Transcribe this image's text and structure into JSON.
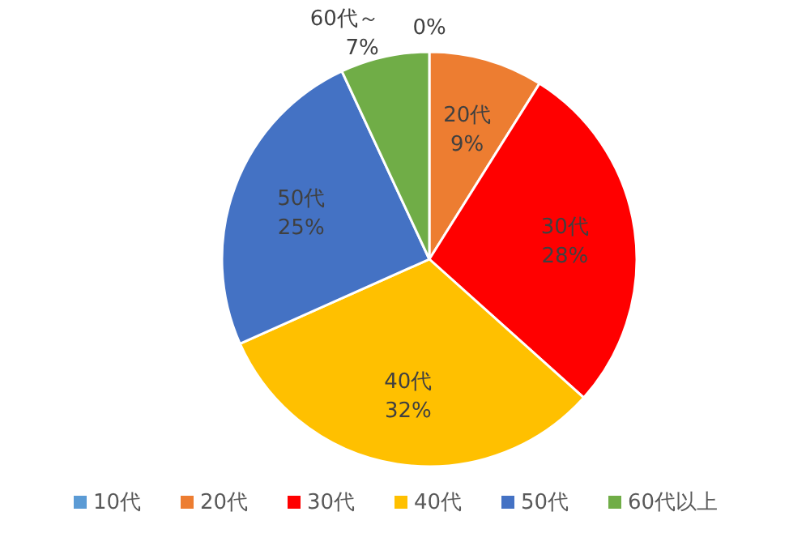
{
  "chart_data": {
    "type": "pie",
    "categories": [
      "10代",
      "20代",
      "30代",
      "40代",
      "50代",
      "60代以上"
    ],
    "values": [
      0,
      9,
      28,
      32,
      25,
      7
    ],
    "colors": [
      "#5b9bd5",
      "#ed7d31",
      "#ff0000",
      "#ffc000",
      "#4472c4",
      "#70ad47"
    ],
    "value_labels": [
      "0%",
      "20代\n9%",
      "30代\n28%",
      "40代\n32%",
      "50代\n25%",
      "60代～\n7%"
    ],
    "legend": "bottom"
  }
}
